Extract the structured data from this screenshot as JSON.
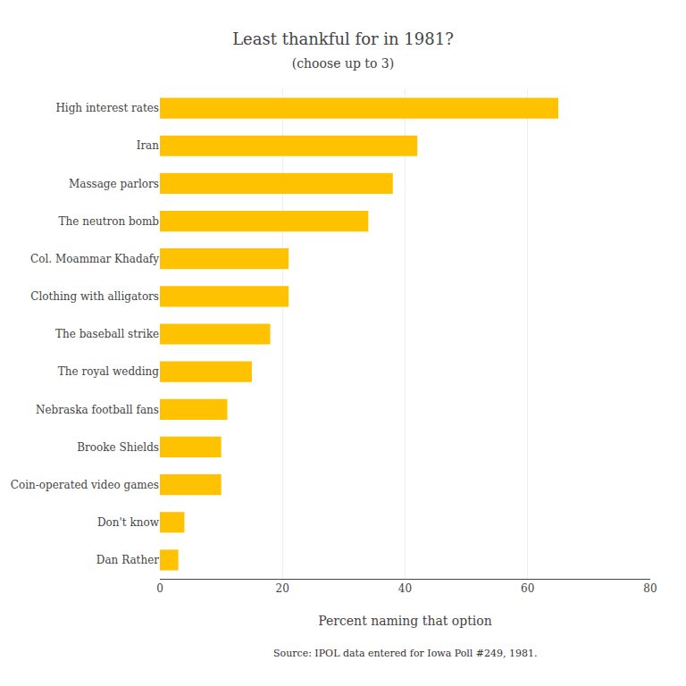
{
  "chart_data": {
    "type": "bar",
    "title": "Least thankful for in 1981?",
    "subtitle": "(choose up to 3)",
    "xlabel": "Percent naming that option",
    "annotations": [
      "Source: IPOL data entered for Iowa Poll #249, 1981."
    ],
    "categories": [
      "Dan Rather",
      "Don't know",
      "Coin-operated video games",
      "Brooke Shields",
      "Nebraska football fans",
      "The royal wedding",
      "The baseball strike",
      "Clothing with alligators",
      "Col. Moammar Khadafy",
      "The neutron bomb",
      "Massage parlors",
      "Iran",
      "High interest rates"
    ],
    "values": [
      3,
      4,
      10,
      10,
      11,
      15,
      18,
      21,
      21,
      34,
      38,
      42,
      65
    ],
    "color": "#FFC200",
    "orientation": "horizontal",
    "xlim": [
      0,
      80
    ],
    "xticks": [
      0,
      20,
      40,
      60,
      80
    ],
    "grid": true
  }
}
